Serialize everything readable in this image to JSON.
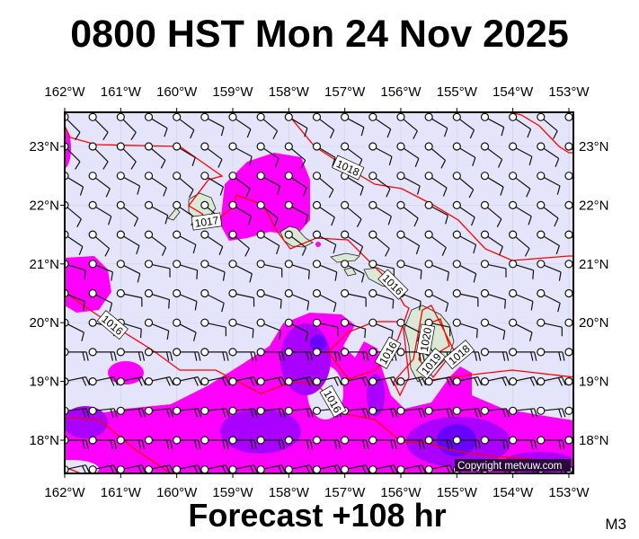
{
  "title": "0800 HST Mon 24 Nov 2025",
  "footer": "Forecast +108 hr",
  "model_tag": "M3",
  "copyright": "Copyright metvuw.com",
  "axes": {
    "lon_labels": [
      "162°W",
      "161°W",
      "160°W",
      "159°W",
      "158°W",
      "157°W",
      "156°W",
      "155°W",
      "154°W",
      "153°W"
    ],
    "lat_labels": [
      "23°N",
      "22°N",
      "21°N",
      "20°N",
      "19°N",
      "18°N"
    ]
  },
  "isobar_labels": [
    "1017",
    "1018",
    "1016",
    "1016",
    "1016",
    "1019",
    "1020",
    "1018",
    "1016"
  ],
  "colors": {
    "background": "#e4e4fa",
    "precip_light": "#ff00ff",
    "precip_medium": "#aa00ff",
    "precip_heavy": "#6a00ff",
    "isobar": "#ff0000",
    "land": "#dce8d6"
  }
}
